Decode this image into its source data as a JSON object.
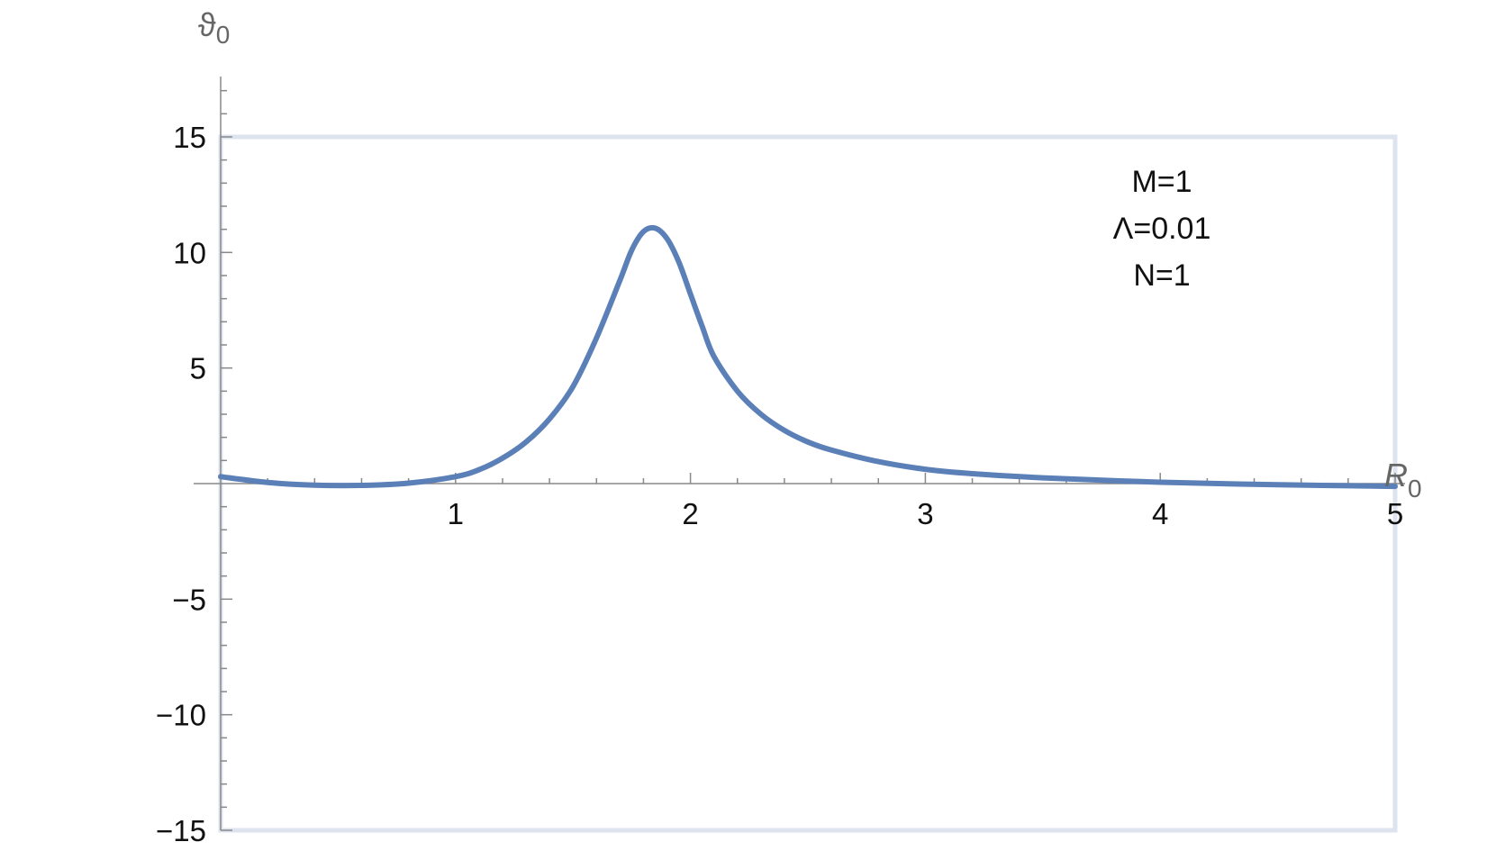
{
  "chart_data": {
    "type": "line",
    "title": "",
    "xlabel": {
      "main": "R",
      "sub": "0"
    },
    "ylabel": {
      "main": "ϑ",
      "sub": "0"
    },
    "xlim": [
      0,
      5
    ],
    "ylim": [
      -15,
      15
    ],
    "x_ticks": [
      {
        "value": 1,
        "label": "1"
      },
      {
        "value": 2,
        "label": "2"
      },
      {
        "value": 3,
        "label": "3"
      },
      {
        "value": 4,
        "label": "4"
      },
      {
        "value": 5,
        "label": "5"
      }
    ],
    "y_ticks": [
      {
        "value": 15,
        "label": "15"
      },
      {
        "value": 10,
        "label": "10"
      },
      {
        "value": 5,
        "label": "5"
      },
      {
        "value": -5,
        "label": "−5"
      },
      {
        "value": -10,
        "label": "−10"
      },
      {
        "value": -15,
        "label": "−15"
      }
    ],
    "annotation": [
      "M=1",
      "Λ=0.01",
      "N=1"
    ],
    "frame_color": "#dde4ef",
    "series": [
      {
        "color": "#5b7fb7",
        "x": [
          0,
          0.2,
          0.4,
          0.6,
          0.8,
          1.0,
          1.1,
          1.2,
          1.3,
          1.4,
          1.5,
          1.6,
          1.7,
          1.75,
          1.8,
          1.85,
          1.9,
          1.95,
          2.0,
          2.05,
          2.1,
          2.2,
          2.3,
          2.4,
          2.5,
          2.6,
          2.8,
          3.0,
          3.2,
          3.5,
          4.0,
          4.5,
          5.0
        ],
        "y": [
          0.3,
          0.05,
          -0.07,
          -0.08,
          0.02,
          0.3,
          0.6,
          1.1,
          1.8,
          2.8,
          4.2,
          6.3,
          8.8,
          10.1,
          10.9,
          11.05,
          10.6,
          9.6,
          8.2,
          6.8,
          5.5,
          4.0,
          3.0,
          2.3,
          1.8,
          1.45,
          0.95,
          0.62,
          0.43,
          0.25,
          0.06,
          -0.05,
          -0.12
        ]
      }
    ]
  }
}
